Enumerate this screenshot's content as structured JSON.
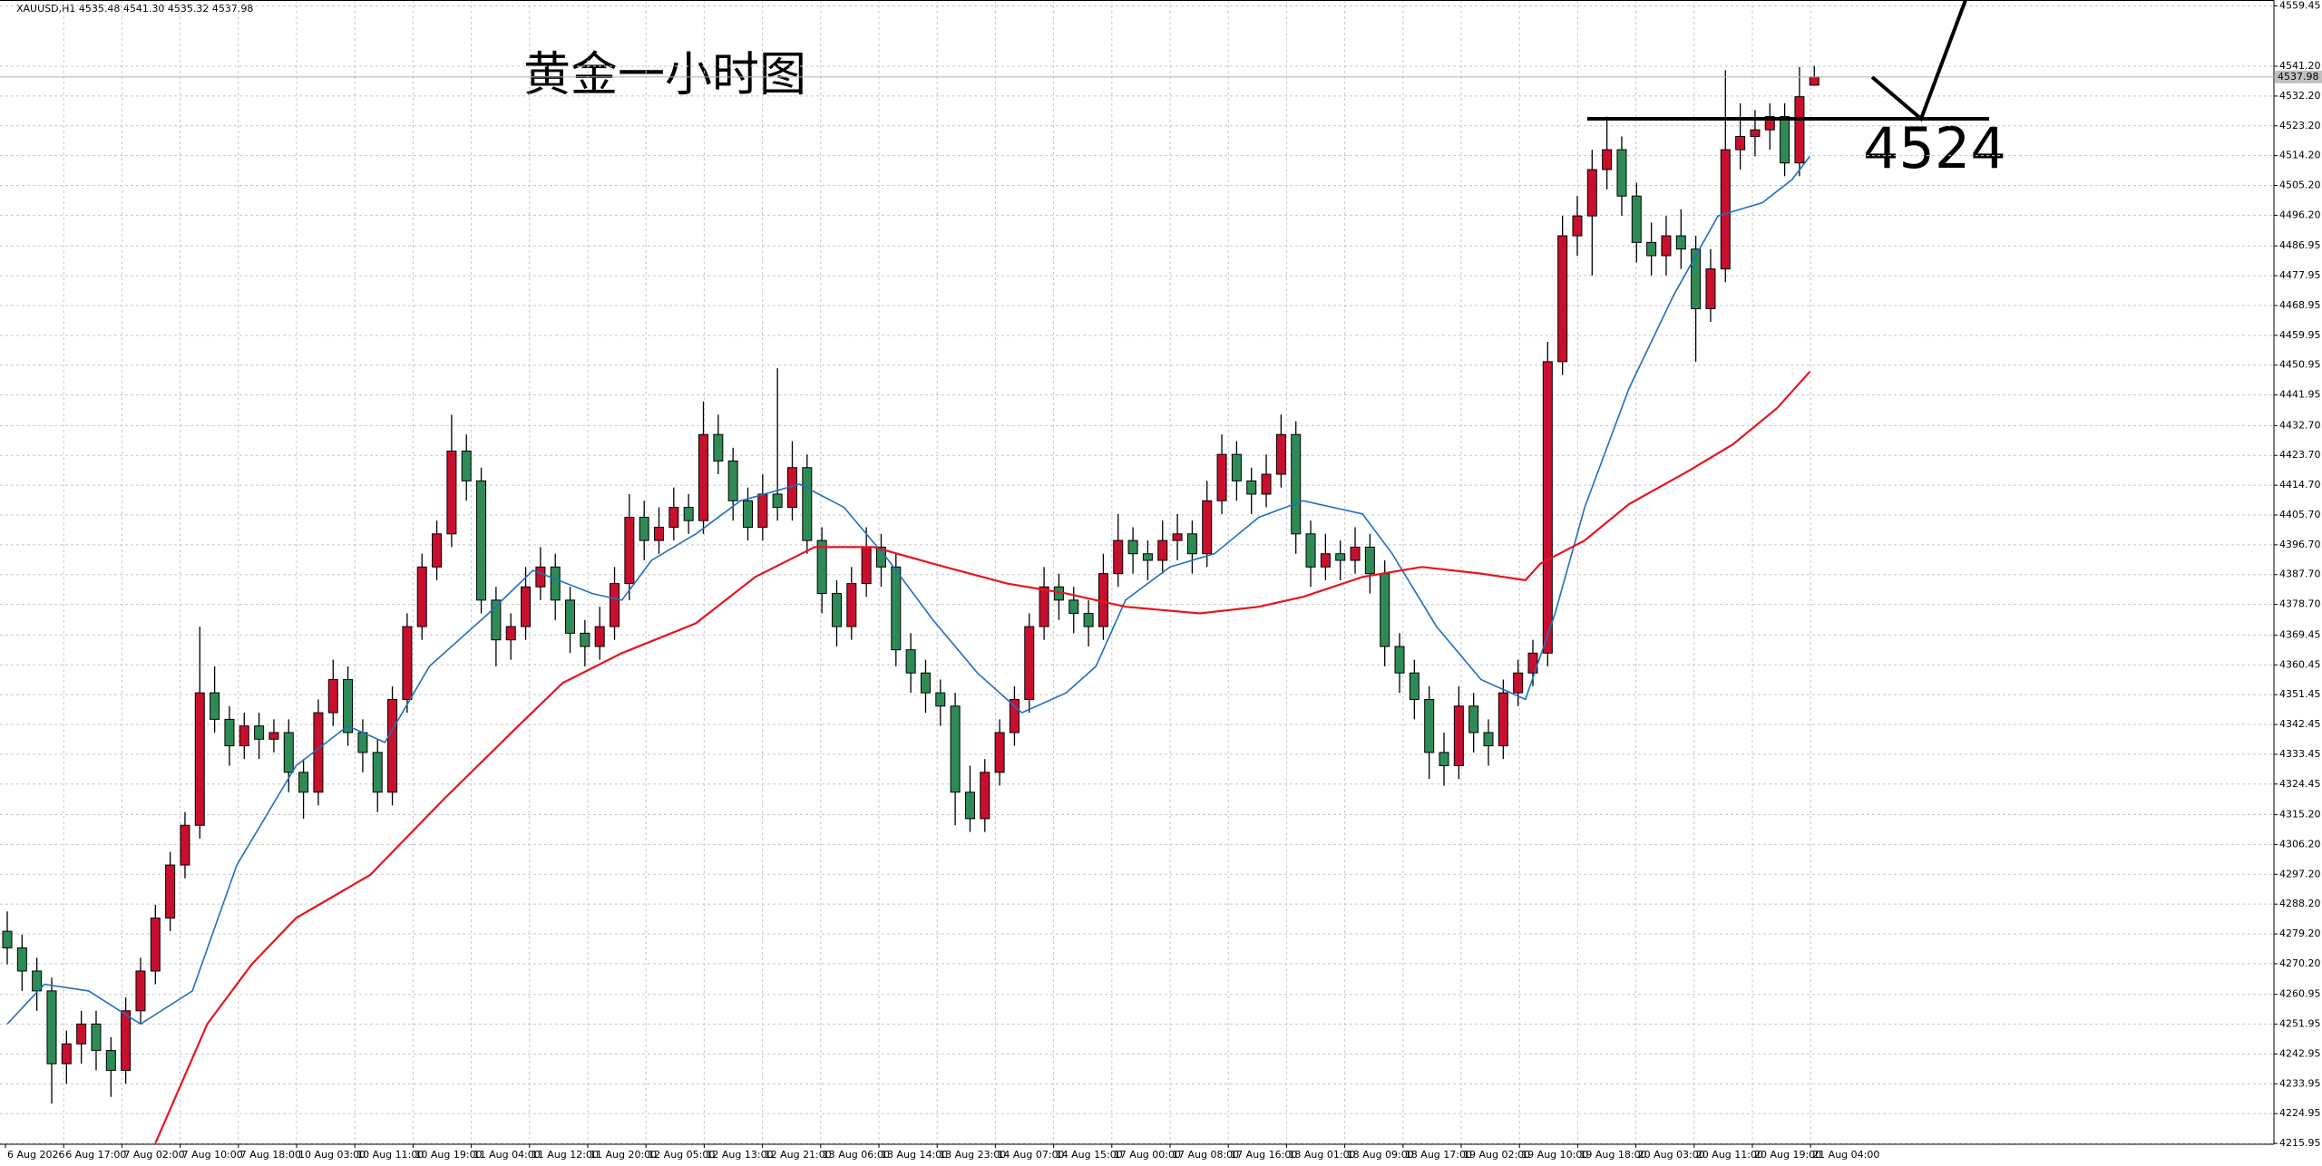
{
  "chart_data": {
    "type": "candlestick",
    "header": "XAUUSD,H1  4535.48 4541.30 4535.32 4537.98",
    "title": "黄金一小时图",
    "annotation": "4524",
    "up_color": "#c8102e",
    "down_color": "#2e8b57",
    "grid": true,
    "ylim": [
      4215.7,
      4561.2
    ],
    "yticks": [
      4559.45,
      {
        "value": 4541.2,
        "label": "4541.20"
      },
      {
        "value": 4532.2,
        "label": "4532.20"
      },
      {
        "value": 4523.2,
        "label": "4523.20"
      },
      {
        "value": 4514.2,
        "label": "4514.20"
      },
      {
        "value": 4505.2,
        "label": "4505.20"
      },
      {
        "value": 4496.2,
        "label": "4496.20"
      },
      4486.95,
      4477.95,
      4468.95,
      4459.95,
      4450.95,
      4441.95,
      {
        "value": 4432.7,
        "label": "4432.70"
      },
      {
        "value": 4423.7,
        "label": "4423.70"
      },
      {
        "value": 4414.7,
        "label": "4414.70"
      },
      {
        "value": 4405.7,
        "label": "4405.70"
      },
      {
        "value": 4396.7,
        "label": "4396.70"
      },
      {
        "value": 4387.7,
        "label": "4387.70"
      },
      {
        "value": 4378.7,
        "label": "4378.70"
      },
      4369.45,
      4360.45,
      4351.45,
      4342.45,
      4333.45,
      4324.45,
      {
        "value": 4315.2,
        "label": "4315.20"
      },
      {
        "value": 4306.2,
        "label": "4306.20"
      },
      {
        "value": 4297.2,
        "label": "4297.20"
      },
      {
        "value": 4288.2,
        "label": "4288.20"
      },
      {
        "value": 4279.2,
        "label": "4279.20"
      },
      {
        "value": 4270.2,
        "label": "4270.20"
      },
      4260.95,
      4251.95,
      4242.95,
      4233.95,
      4224.95,
      4215.95
    ],
    "current_price": 4537.98,
    "x_labels": [
      "6 Aug 2026",
      "6 Aug 17:00",
      "7 Aug 02:00",
      "7 Aug 10:00",
      "7 Aug 18:00",
      "10 Aug 03:00",
      "10 Aug 11:00",
      "10 Aug 19:00",
      "11 Aug 04:00",
      "11 Aug 12:00",
      "11 Aug 20:00",
      "12 Aug 05:00",
      "12 Aug 13:00",
      "12 Aug 21:00",
      "13 Aug 06:00",
      "13 Aug 14:00",
      "13 Aug 23:00",
      "14 Aug 07:00",
      "14 Aug 15:00",
      "17 Aug 00:00",
      "17 Aug 08:00",
      "17 Aug 16:00",
      "18 Aug 01:00",
      "18 Aug 09:00",
      "18 Aug 17:00",
      "19 Aug 02:00",
      "19 Aug 10:00",
      "19 Aug 18:00",
      "20 Aug 03:00",
      "20 Aug 11:00",
      "20 Aug 19:00",
      "21 Aug 04:00"
    ],
    "candles": [
      [
        4280,
        4286,
        4270,
        4275
      ],
      [
        4275,
        4279,
        4262,
        4268
      ],
      [
        4268,
        4272,
        4256,
        4262
      ],
      [
        4262,
        4266,
        4228,
        4240
      ],
      [
        4240,
        4250,
        4234,
        4246
      ],
      [
        4246,
        4256,
        4240,
        4252
      ],
      [
        4252,
        4256,
        4238,
        4244
      ],
      [
        4244,
        4248,
        4230,
        4238
      ],
      [
        4238,
        4260,
        4234,
        4256
      ],
      [
        4256,
        4272,
        4252,
        4268
      ],
      [
        4268,
        4288,
        4264,
        4284
      ],
      [
        4284,
        4304,
        4280,
        4300
      ],
      [
        4300,
        4316,
        4296,
        4312
      ],
      [
        4312,
        4372,
        4308,
        4352
      ],
      [
        4352,
        4360,
        4340,
        4344
      ],
      [
        4344,
        4348,
        4330,
        4336
      ],
      [
        4336,
        4346,
        4332,
        4342
      ],
      [
        4342,
        4346,
        4332,
        4338
      ],
      [
        4338,
        4344,
        4334,
        4340
      ],
      [
        4340,
        4344,
        4322,
        4328
      ],
      [
        4328,
        4332,
        4314,
        4322
      ],
      [
        4322,
        4350,
        4318,
        4346
      ],
      [
        4346,
        4362,
        4342,
        4356
      ],
      [
        4356,
        4360,
        4336,
        4340
      ],
      [
        4340,
        4344,
        4328,
        4334
      ],
      [
        4334,
        4338,
        4316,
        4322
      ],
      [
        4322,
        4354,
        4318,
        4350
      ],
      [
        4350,
        4376,
        4346,
        4372
      ],
      [
        4372,
        4394,
        4368,
        4390
      ],
      [
        4390,
        4404,
        4386,
        4400
      ],
      [
        4400,
        4436,
        4396,
        4425
      ],
      [
        4425,
        4430,
        4410,
        4416
      ],
      [
        4416,
        4420,
        4376,
        4380
      ],
      [
        4380,
        4384,
        4360,
        4368
      ],
      [
        4368,
        4376,
        4362,
        4372
      ],
      [
        4372,
        4390,
        4368,
        4384
      ],
      [
        4384,
        4396,
        4380,
        4390
      ],
      [
        4390,
        4394,
        4374,
        4380
      ],
      [
        4380,
        4384,
        4364,
        4370
      ],
      [
        4370,
        4374,
        4360,
        4366
      ],
      [
        4366,
        4378,
        4362,
        4372
      ],
      [
        4372,
        4390,
        4368,
        4385
      ],
      [
        4385,
        4412,
        4380,
        4405
      ],
      [
        4405,
        4410,
        4392,
        4398
      ],
      [
        4398,
        4408,
        4394,
        4402
      ],
      [
        4402,
        4414,
        4398,
        4408
      ],
      [
        4408,
        4412,
        4400,
        4404
      ],
      [
        4404,
        4440,
        4400,
        4430
      ],
      [
        4430,
        4436,
        4418,
        4422
      ],
      [
        4422,
        4426,
        4404,
        4410
      ],
      [
        4410,
        4414,
        4398,
        4402
      ],
      [
        4402,
        4418,
        4398,
        4412
      ],
      [
        4412,
        4450,
        4404,
        4408
      ],
      [
        4408,
        4428,
        4404,
        4420
      ],
      [
        4420,
        4424,
        4394,
        4398
      ],
      [
        4398,
        4402,
        4376,
        4382
      ],
      [
        4382,
        4386,
        4366,
        4372
      ],
      [
        4372,
        4390,
        4368,
        4385
      ],
      [
        4385,
        4402,
        4381,
        4396
      ],
      [
        4396,
        4400,
        4384,
        4390
      ],
      [
        4390,
        4394,
        4360,
        4365
      ],
      [
        4365,
        4370,
        4352,
        4358
      ],
      [
        4358,
        4362,
        4346,
        4352
      ],
      [
        4352,
        4356,
        4342,
        4348
      ],
      [
        4348,
        4352,
        4312,
        4322
      ],
      [
        4322,
        4330,
        4310,
        4314
      ],
      [
        4314,
        4332,
        4310,
        4328
      ],
      [
        4328,
        4344,
        4324,
        4340
      ],
      [
        4340,
        4354,
        4336,
        4350
      ],
      [
        4350,
        4376,
        4346,
        4372
      ],
      [
        4372,
        4390,
        4368,
        4384
      ],
      [
        4384,
        4388,
        4374,
        4380
      ],
      [
        4380,
        4384,
        4370,
        4376
      ],
      [
        4376,
        4380,
        4366,
        4372
      ],
      [
        4372,
        4394,
        4368,
        4388
      ],
      [
        4388,
        4406,
        4384,
        4398
      ],
      [
        4398,
        4402,
        4388,
        4394
      ],
      [
        4394,
        4398,
        4386,
        4392
      ],
      [
        4392,
        4404,
        4388,
        4398
      ],
      [
        4398,
        4406,
        4392,
        4400
      ],
      [
        4400,
        4404,
        4388,
        4394
      ],
      [
        4394,
        4416,
        4390,
        4410
      ],
      [
        4410,
        4430,
        4406,
        4424
      ],
      [
        4424,
        4428,
        4410,
        4416
      ],
      [
        4416,
        4420,
        4406,
        4412
      ],
      [
        4412,
        4424,
        4408,
        4418
      ],
      [
        4418,
        4436,
        4414,
        4430
      ],
      [
        4430,
        4434,
        4394,
        4400
      ],
      [
        4400,
        4404,
        4384,
        4390
      ],
      [
        4390,
        4400,
        4386,
        4394
      ],
      [
        4394,
        4398,
        4386,
        4392
      ],
      [
        4392,
        4402,
        4388,
        4396
      ],
      [
        4396,
        4400,
        4382,
        4388
      ],
      [
        4388,
        4392,
        4360,
        4366
      ],
      [
        4366,
        4370,
        4352,
        4358
      ],
      [
        4358,
        4362,
        4344,
        4350
      ],
      [
        4350,
        4354,
        4326,
        4334
      ],
      [
        4334,
        4340,
        4324,
        4330
      ],
      [
        4330,
        4354,
        4326,
        4348
      ],
      [
        4348,
        4352,
        4334,
        4340
      ],
      [
        4340,
        4344,
        4330,
        4336
      ],
      [
        4336,
        4356,
        4332,
        4352
      ],
      [
        4352,
        4362,
        4348,
        4358
      ],
      [
        4358,
        4368,
        4354,
        4364
      ],
      [
        4364,
        4458,
        4360,
        4452
      ],
      [
        4452,
        4496,
        4448,
        4490
      ],
      [
        4490,
        4502,
        4484,
        4496
      ],
      [
        4496,
        4516,
        4478,
        4510
      ],
      [
        4510,
        4526,
        4504,
        4516
      ],
      [
        4516,
        4520,
        4496,
        4502
      ],
      [
        4502,
        4506,
        4482,
        4488
      ],
      [
        4488,
        4494,
        4478,
        4484
      ],
      [
        4484,
        4496,
        4478,
        4490
      ],
      [
        4490,
        4498,
        4480,
        4486
      ],
      [
        4486,
        4490,
        4452,
        4468
      ],
      [
        4468,
        4486,
        4464,
        4480
      ],
      [
        4480,
        4540,
        4476,
        4516
      ],
      [
        4516,
        4530,
        4510,
        4520
      ],
      [
        4520,
        4528,
        4514,
        4522
      ],
      [
        4522,
        4530,
        4516,
        4526
      ],
      [
        4526,
        4530,
        4508,
        4512
      ],
      [
        4512,
        4541,
        4508,
        4532
      ],
      [
        4535.48,
        4541.3,
        4535.32,
        4537.98
      ]
    ],
    "lines": [
      {
        "color": "#1f6fbf",
        "x": [
          0,
          2.5,
          5.5,
          9,
          12.5,
          15.5,
          19.5,
          23,
          25.5,
          28.5,
          32.5,
          35.5,
          39.5,
          41.5,
          43.5,
          46.5,
          49.5,
          53.5,
          56.5,
          59.5,
          62.5,
          65.5,
          68.5,
          71.5,
          73.5,
          75.5,
          78.5,
          81.5,
          84.5,
          87.5,
          91.5,
          93.5,
          96.5,
          99.5,
          102.5,
          104.5,
          106.5,
          109.5,
          112.5,
          115.5,
          118.5,
          120.5,
          121.7
        ],
        "values": [
          4252,
          4264,
          4262,
          4252,
          4262,
          4300,
          4330,
          4342,
          4337,
          4360,
          4376,
          4389,
          4382,
          4380,
          4392,
          4400,
          4410,
          4415,
          4408,
          4392,
          4374,
          4358,
          4346,
          4352,
          4360,
          4380,
          4390,
          4394,
          4405,
          4410,
          4406,
          4394,
          4372,
          4356,
          4350,
          4376,
          4408,
          4444,
          4472,
          4496,
          4500,
          4507,
          4514
        ]
      },
      {
        "color": "#e8141e",
        "x": [
          10,
          13.5,
          16.5,
          19.5,
          24.5,
          29.5,
          34.5,
          37.5,
          41.5,
          46.5,
          50.5,
          54.5,
          58.5,
          62.5,
          67.5,
          71.5,
          75.5,
          80.5,
          84.5,
          87.5,
          91.5,
          95.5,
          99.5,
          102.5,
          103.5,
          106.5,
          109.5,
          113.5,
          116.5,
          119.5,
          121.7
        ],
        "values": [
          4216,
          4252,
          4270,
          4284,
          4297,
          4320,
          4342,
          4355,
          4364,
          4373,
          4387,
          4396,
          4396,
          4391,
          4385,
          4382,
          4378,
          4376,
          4378,
          4381,
          4387,
          4390,
          4388,
          4386,
          4391,
          4398,
          4409,
          4419,
          4427,
          4438,
          4449
        ]
      }
    ]
  }
}
